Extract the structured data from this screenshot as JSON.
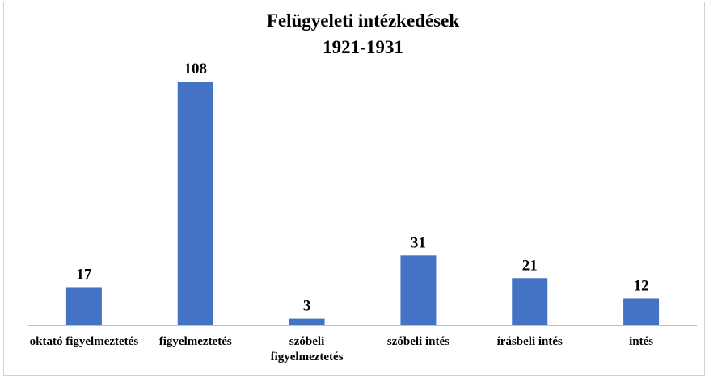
{
  "chart_data": {
    "type": "bar",
    "title": "Felügyeleti intézkedések",
    "subtitle": "1921-1931",
    "categories": [
      "oktató figyelmeztetés",
      "figyelmeztetés",
      "szóbeli figyelmeztetés",
      "szóbeli intés",
      "írásbeli intés",
      "intés"
    ],
    "values": [
      17,
      108,
      3,
      31,
      21,
      12
    ],
    "color": "#4472c4"
  }
}
